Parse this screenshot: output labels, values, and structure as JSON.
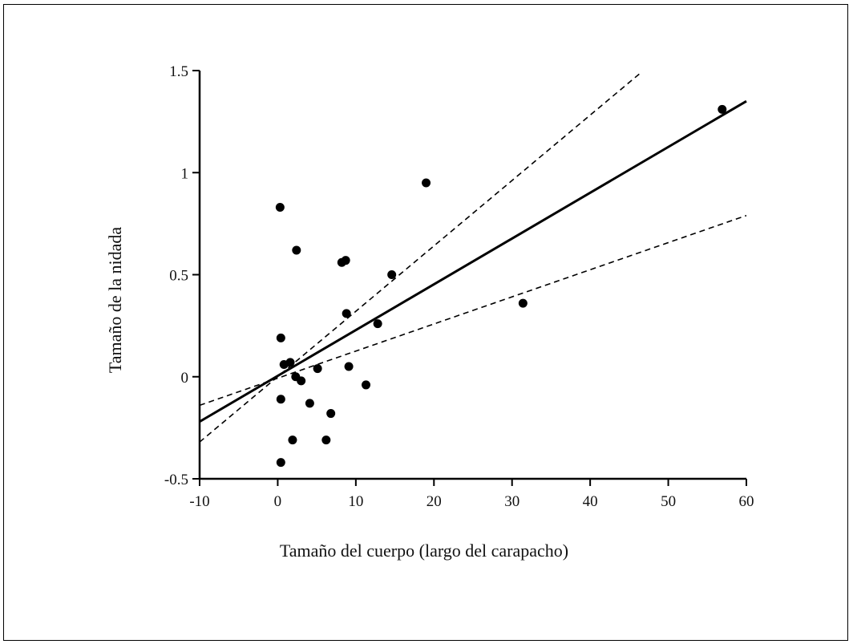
{
  "chart_data": {
    "type": "scatter",
    "xlabel": "Tamaño del cuerpo (largo del carapacho)",
    "ylabel": "Tamaño de la nidada",
    "xlim": [
      -10,
      60
    ],
    "ylim": [
      -0.5,
      1.5
    ],
    "x_ticks": [
      -10,
      0,
      10,
      20,
      30,
      40,
      50,
      60
    ],
    "x_tick_labels": [
      "-10",
      "0",
      "10",
      "20",
      "30",
      "40",
      "50",
      "60"
    ],
    "y_ticks": [
      -0.5,
      0,
      0.5,
      1,
      1.5
    ],
    "y_tick_labels": [
      "-0.5",
      "0",
      "0.5",
      "1",
      "1.5"
    ],
    "grid": false,
    "legend": "none",
    "points": [
      {
        "x": 0.3,
        "y": 0.83
      },
      {
        "x": 2.4,
        "y": 0.62
      },
      {
        "x": 8.2,
        "y": 0.56
      },
      {
        "x": 8.7,
        "y": 0.57
      },
      {
        "x": 14.6,
        "y": 0.5
      },
      {
        "x": 19.0,
        "y": 0.95
      },
      {
        "x": 56.9,
        "y": 1.31
      },
      {
        "x": 31.4,
        "y": 0.36
      },
      {
        "x": 8.8,
        "y": 0.31
      },
      {
        "x": 12.8,
        "y": 0.26
      },
      {
        "x": 0.4,
        "y": 0.19
      },
      {
        "x": 0.8,
        "y": 0.06
      },
      {
        "x": 1.6,
        "y": 0.07
      },
      {
        "x": 2.3,
        "y": 0.0
      },
      {
        "x": 3.0,
        "y": -0.02
      },
      {
        "x": 5.1,
        "y": 0.04
      },
      {
        "x": 9.1,
        "y": 0.05
      },
      {
        "x": 11.3,
        "y": -0.04
      },
      {
        "x": 0.4,
        "y": -0.11
      },
      {
        "x": 4.1,
        "y": -0.13
      },
      {
        "x": 6.8,
        "y": -0.18
      },
      {
        "x": 1.9,
        "y": -0.31
      },
      {
        "x": 6.2,
        "y": -0.31
      },
      {
        "x": 0.4,
        "y": -0.42
      }
    ],
    "fit_line": {
      "x": [
        -10,
        60
      ],
      "y": [
        -0.22,
        1.35
      ]
    },
    "confidence_band_upper": {
      "x": [
        -10,
        46.5
      ],
      "y": [
        -0.32,
        1.49
      ]
    },
    "confidence_band_lower": {
      "x": [
        -10,
        60
      ],
      "y": [
        -0.14,
        0.79
      ]
    }
  }
}
